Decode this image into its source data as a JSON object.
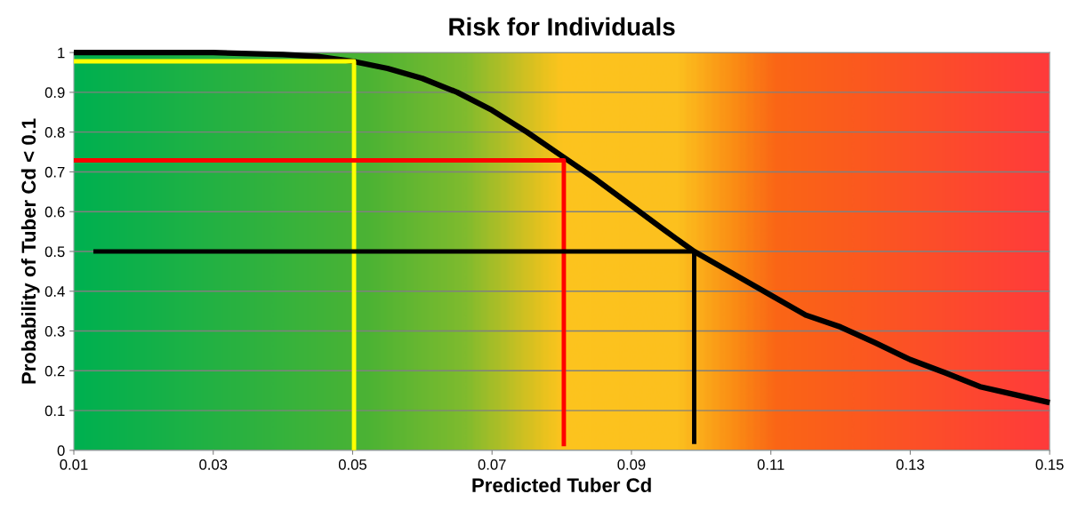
{
  "chart_data": {
    "type": "line",
    "title": "Risk for Individuals",
    "xlabel": "Predicted Tuber Cd",
    "ylabel": "Probability of Tuber Cd < 0.1",
    "series": [
      {
        "color": "#000000",
        "x": [
          0.01,
          0.02,
          0.03,
          0.04,
          0.045,
          0.05,
          0.055,
          0.06,
          0.065,
          0.07,
          0.075,
          0.08,
          0.085,
          0.09,
          0.095,
          0.099,
          0.105,
          0.11,
          0.115,
          0.12,
          0.125,
          0.13,
          0.135,
          0.14,
          0.145,
          0.15
        ],
        "values": [
          1.0,
          1.0,
          1.0,
          0.995,
          0.99,
          0.978,
          0.96,
          0.935,
          0.9,
          0.855,
          0.8,
          0.74,
          0.68,
          0.615,
          0.55,
          0.5,
          0.44,
          0.39,
          0.34,
          0.31,
          0.27,
          0.228,
          0.195,
          0.16,
          0.14,
          0.12
        ]
      },
      {
        "color": "#ffff00",
        "x": [
          0.01,
          0.0502,
          0.0502
        ],
        "values": [
          0.978,
          0.978,
          0.0
        ]
      },
      {
        "color": "#ff0000",
        "x": [
          0.01,
          0.0803,
          0.0803
        ],
        "values": [
          0.729,
          0.729,
          0.01
        ]
      },
      {
        "color": "#000000",
        "x": [
          0.0128,
          0.099,
          0.099
        ],
        "values": [
          0.5,
          0.5,
          0.016
        ]
      }
    ],
    "xlim": [
      0.01,
      0.15
    ],
    "xticks": [
      0.01,
      0.03,
      0.05,
      0.07,
      0.09,
      0.11,
      0.13,
      0.15
    ],
    "ylim": [
      0,
      1
    ],
    "yticks": [
      0,
      0.1,
      0.2,
      0.3,
      0.4,
      0.5,
      0.6,
      0.7,
      0.8,
      0.9,
      1
    ],
    "grid": "y"
  }
}
